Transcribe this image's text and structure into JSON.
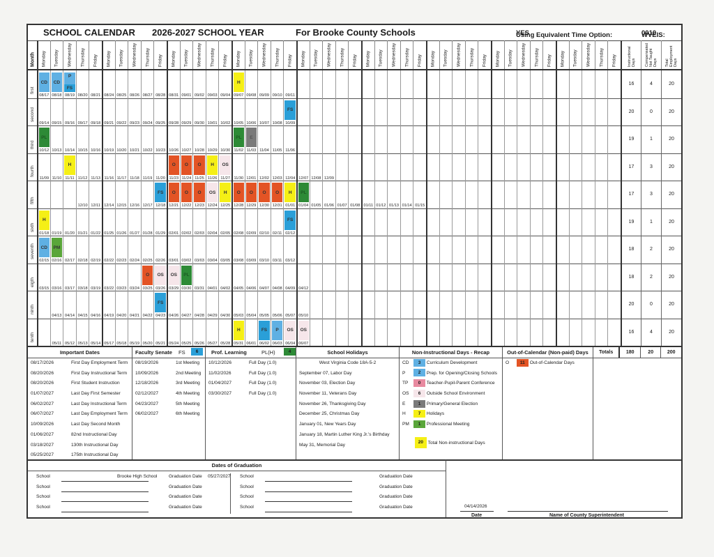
{
  "header": {
    "title": "SCHOOL CALENDAR",
    "year": "2026-2027 SCHOOL YEAR",
    "county": "For Brooke County Schools",
    "equiv_label": "Using Equivalent Time Option:",
    "equiv_value": "YES",
    "wveis_label": "WVEIS:",
    "wveis_value": "0010"
  },
  "columns": {
    "month": "Month",
    "days": [
      "Monday",
      "Tuesday",
      "Wednesday",
      "Thursday",
      "Friday"
    ],
    "weeks": 9,
    "summary": [
      "Instructional Days",
      "Compensated Not Taught Days",
      "Total Employment Days"
    ]
  },
  "months": [
    {
      "name": "first",
      "instructional": "16",
      "compensated": "4",
      "total": "20",
      "days": [
        {
          "date": "08/17",
          "code": "CD"
        },
        {
          "date": "08/18",
          "code": "CD"
        },
        {
          "date": "08/19",
          "code": "P",
          "code2": "FS"
        },
        {
          "date": "08/20"
        },
        {
          "date": "08/21"
        },
        {
          "date": "08/24"
        },
        {
          "date": "08/25"
        },
        {
          "date": "08/26"
        },
        {
          "date": "08/27"
        },
        {
          "date": "08/28"
        },
        {
          "date": "08/31"
        },
        {
          "date": "09/01"
        },
        {
          "date": "09/02"
        },
        {
          "date": "09/03"
        },
        {
          "date": "09/04"
        },
        {
          "date": "09/07",
          "code": "H"
        },
        {
          "date": "09/08"
        },
        {
          "date": "09/09"
        },
        {
          "date": "09/10"
        },
        {
          "date": "09/11"
        }
      ]
    },
    {
      "name": "second",
      "instructional": "20",
      "compensated": "0",
      "total": "20",
      "days": [
        {
          "date": "09/14"
        },
        {
          "date": "09/15"
        },
        {
          "date": "09/16"
        },
        {
          "date": "09/17"
        },
        {
          "date": "09/18"
        },
        {
          "date": "09/21"
        },
        {
          "date": "09/22"
        },
        {
          "date": "09/23"
        },
        {
          "date": "09/24"
        },
        {
          "date": "09/25"
        },
        {
          "date": "09/28"
        },
        {
          "date": "09/29"
        },
        {
          "date": "09/30"
        },
        {
          "date": "10/01"
        },
        {
          "date": "10/02"
        },
        {
          "date": "10/05"
        },
        {
          "date": "10/06"
        },
        {
          "date": "10/07"
        },
        {
          "date": "10/08"
        },
        {
          "date": "10/09",
          "code": "FS"
        }
      ]
    },
    {
      "name": "third",
      "instructional": "19",
      "compensated": "1",
      "total": "20",
      "days": [
        {
          "date": "10/12",
          "code": "PL"
        },
        {
          "date": "10/13"
        },
        {
          "date": "10/14"
        },
        {
          "date": "10/15"
        },
        {
          "date": "10/16"
        },
        {
          "date": "10/19"
        },
        {
          "date": "10/20"
        },
        {
          "date": "10/21"
        },
        {
          "date": "10/22"
        },
        {
          "date": "10/23"
        },
        {
          "date": "10/26"
        },
        {
          "date": "10/27"
        },
        {
          "date": "10/28"
        },
        {
          "date": "10/29"
        },
        {
          "date": "10/30"
        },
        {
          "date": "11/02",
          "code": "PL"
        },
        {
          "date": "11/03",
          "code": "E"
        },
        {
          "date": "11/04"
        },
        {
          "date": "11/05"
        },
        {
          "date": "11/06"
        }
      ]
    },
    {
      "name": "fourth",
      "instructional": "17",
      "compensated": "3",
      "total": "20",
      "days": [
        {
          "date": "11/09"
        },
        {
          "date": "11/10"
        },
        {
          "date": "11/11",
          "code": "H"
        },
        {
          "date": "11/12"
        },
        {
          "date": "11/13"
        },
        {
          "date": "11/16"
        },
        {
          "date": "11/17"
        },
        {
          "date": "11/18"
        },
        {
          "date": "11/19"
        },
        {
          "date": "11/20"
        },
        {
          "date": "11/23",
          "code": "O"
        },
        {
          "date": "11/24",
          "code": "O"
        },
        {
          "date": "11/25",
          "code": "O"
        },
        {
          "date": "11/26",
          "code": "H"
        },
        {
          "date": "11/27",
          "code": "OS"
        },
        {
          "date": "11/30"
        },
        {
          "date": "12/01"
        },
        {
          "date": "12/02"
        },
        {
          "date": "12/03"
        },
        {
          "date": "12/04"
        },
        {
          "date": "12/07"
        },
        {
          "date": "12/08"
        },
        {
          "date": "12/09"
        }
      ]
    },
    {
      "name": "fifth",
      "instructional": "17",
      "compensated": "3",
      "total": "20",
      "days": [
        {},
        {},
        {},
        {
          "date": "12/10"
        },
        {
          "date": "12/11"
        },
        {
          "date": "12/14"
        },
        {
          "date": "12/15"
        },
        {
          "date": "12/16"
        },
        {
          "date": "12/17"
        },
        {
          "date": "12/18",
          "code": "FS"
        },
        {
          "date": "12/21",
          "code": "O"
        },
        {
          "date": "12/22",
          "code": "O"
        },
        {
          "date": "12/23",
          "code": "O"
        },
        {
          "date": "12/24",
          "code": "OS"
        },
        {
          "date": "12/25",
          "code": "H"
        },
        {
          "date": "12/28",
          "code": "O"
        },
        {
          "date": "12/29",
          "code": "O"
        },
        {
          "date": "12/30",
          "code": "O"
        },
        {
          "date": "12/31",
          "code": "O"
        },
        {
          "date": "01/01",
          "code": "H"
        },
        {
          "date": "01/04",
          "code": "PL"
        },
        {
          "date": "01/05"
        },
        {
          "date": "01/06"
        },
        {
          "date": "01/07"
        },
        {
          "date": "01/08"
        },
        {
          "date": "01/11"
        },
        {
          "date": "01/12"
        },
        {
          "date": "01/13"
        },
        {
          "date": "01/14"
        },
        {
          "date": "01/15"
        }
      ]
    },
    {
      "name": "sixth",
      "instructional": "19",
      "compensated": "1",
      "total": "20",
      "days": [
        {
          "date": "01/18",
          "code": "H"
        },
        {
          "date": "01/19"
        },
        {
          "date": "01/20"
        },
        {
          "date": "01/21"
        },
        {
          "date": "01/22"
        },
        {
          "date": "01/25"
        },
        {
          "date": "01/26"
        },
        {
          "date": "01/27"
        },
        {
          "date": "01/28"
        },
        {
          "date": "01/29"
        },
        {
          "date": "02/01"
        },
        {
          "date": "02/02"
        },
        {
          "date": "02/03"
        },
        {
          "date": "02/04"
        },
        {
          "date": "02/05"
        },
        {
          "date": "02/08"
        },
        {
          "date": "02/09"
        },
        {
          "date": "02/10"
        },
        {
          "date": "02/11"
        },
        {
          "date": "02/12",
          "code": "FS"
        }
      ]
    },
    {
      "name": "seventh",
      "instructional": "18",
      "compensated": "2",
      "total": "20",
      "days": [
        {
          "date": "02/15",
          "code": "CD"
        },
        {
          "date": "02/16",
          "code": "PM"
        },
        {
          "date": "02/17"
        },
        {
          "date": "02/18"
        },
        {
          "date": "02/19"
        },
        {
          "date": "02/22"
        },
        {
          "date": "02/23"
        },
        {
          "date": "02/24"
        },
        {
          "date": "02/25"
        },
        {
          "date": "02/26"
        },
        {
          "date": "03/01"
        },
        {
          "date": "03/02"
        },
        {
          "date": "03/03"
        },
        {
          "date": "03/04"
        },
        {
          "date": "03/05"
        },
        {
          "date": "03/08"
        },
        {
          "date": "03/09"
        },
        {
          "date": "03/10"
        },
        {
          "date": "03/11"
        },
        {
          "date": "03/12"
        }
      ]
    },
    {
      "name": "eigth",
      "instructional": "18",
      "compensated": "2",
      "total": "20",
      "days": [
        {
          "date": "03/15"
        },
        {
          "date": "03/16"
        },
        {
          "date": "03/17"
        },
        {
          "date": "03/18"
        },
        {
          "date": "03/19"
        },
        {
          "date": "03/22"
        },
        {
          "date": "03/23"
        },
        {
          "date": "03/24"
        },
        {
          "date": "03/25",
          "code": "O"
        },
        {
          "date": "03/26",
          "code": "OS"
        },
        {
          "date": "03/29",
          "code": "OS"
        },
        {
          "date": "03/30",
          "code": "PL"
        },
        {
          "date": "03/31"
        },
        {
          "date": "04/01"
        },
        {
          "date": "04/02"
        },
        {
          "date": "04/05"
        },
        {
          "date": "04/06"
        },
        {
          "date": "04/07"
        },
        {
          "date": "04/08"
        },
        {
          "date": "04/09"
        },
        {
          "date": "04/12"
        }
      ]
    },
    {
      "name": "ninth",
      "instructional": "20",
      "compensated": "0",
      "total": "20",
      "days": [
        {},
        {
          "date": "04/13"
        },
        {
          "date": "04/14"
        },
        {
          "date": "04/15"
        },
        {
          "date": "04/16"
        },
        {
          "date": "04/19"
        },
        {
          "date": "04/20"
        },
        {
          "date": "04/21"
        },
        {
          "date": "04/22"
        },
        {
          "date": "04/23",
          "code": "FS"
        },
        {
          "date": "04/26"
        },
        {
          "date": "04/27"
        },
        {
          "date": "04/28"
        },
        {
          "date": "04/29"
        },
        {
          "date": "04/30"
        },
        {
          "date": "05/03"
        },
        {
          "date": "05/04"
        },
        {
          "date": "05/05"
        },
        {
          "date": "05/06"
        },
        {
          "date": "05/07"
        },
        {
          "date": "05/10"
        }
      ]
    },
    {
      "name": "tenth",
      "instructional": "16",
      "compensated": "4",
      "total": "20",
      "days": [
        {},
        {
          "date": "05/11"
        },
        {
          "date": "05/12"
        },
        {
          "date": "05/13"
        },
        {
          "date": "05/14"
        },
        {
          "date": "05/17"
        },
        {
          "date": "05/18"
        },
        {
          "date": "05/19"
        },
        {
          "date": "05/20"
        },
        {
          "date": "05/21"
        },
        {
          "date": "05/24"
        },
        {
          "date": "05/25"
        },
        {
          "date": "05/26"
        },
        {
          "date": "05/27"
        },
        {
          "date": "05/28"
        },
        {
          "date": "05/31",
          "code": "H"
        },
        {
          "date": "06/01"
        },
        {
          "date": "06/02",
          "code": "FS"
        },
        {
          "date": "06/03",
          "code": "P"
        },
        {
          "date": "06/04",
          "code": "OS"
        },
        {
          "date": "06/07",
          "code": "OS"
        }
      ]
    }
  ],
  "important_dates": {
    "title": "Important Dates",
    "items": [
      {
        "date": "08/17/2026",
        "label": "First Day Employment Term"
      },
      {
        "date": "08/20/2026",
        "label": "First Day Instructional Term"
      },
      {
        "date": "08/20/2026",
        "label": "First Student Instruction"
      },
      {
        "date": "01/07/2027",
        "label": "Last Day First Semester"
      },
      {
        "date": "06/02/2027",
        "label": "Last Day Instructional Term"
      },
      {
        "date": "06/07/2027",
        "label": "Last Day Employment Term"
      },
      {
        "date": "10/09/2026",
        "label": "Last Day Second Month"
      },
      {
        "date": "01/06/2027",
        "label": "82nd Instructional Day"
      },
      {
        "date": "03/18/2027",
        "label": "130th Instructional Day"
      },
      {
        "date": "05/25/2027",
        "label": "175th Instructional Day"
      }
    ]
  },
  "faculty_senate": {
    "title": "Faculty Senate",
    "abbr": "FS",
    "count": "6",
    "items": [
      {
        "date": "08/19/2026",
        "label": "1st Meeting"
      },
      {
        "date": "10/09/2026",
        "label": "2nd Meeting"
      },
      {
        "date": "12/18/2026",
        "label": "3rd Meeting"
      },
      {
        "date": "02/12/2027",
        "label": "4th Meeting"
      },
      {
        "date": "04/23/2027",
        "label": "5th Meeting"
      },
      {
        "date": "06/02/2027",
        "label": "6th Meeting"
      }
    ]
  },
  "prof_learning": {
    "title": "Prof. Learning",
    "abbr": "PL(H)",
    "count": "4",
    "items": [
      {
        "date": "10/12/2026",
        "label": "Full Day (1.0)"
      },
      {
        "date": "11/02/2026",
        "label": "Full Day (1.0)"
      },
      {
        "date": "01/04/2027",
        "label": "Full Day (1.0)"
      },
      {
        "date": "03/30/2027",
        "label": "Full Day (1.0)"
      }
    ]
  },
  "holidays": {
    "title": "School Holidays",
    "code": "West Virginia Code 18A-5-2",
    "items": [
      "September 07, Labor Day",
      "November 03, Election Day",
      "November 11, Veterans Day",
      "November 26, Thanksgiving Day",
      "December 25, Christmas Day",
      "January 01, New Years Day",
      "January 18, Martin Luther King Jr.'s Birthday",
      "May 31, Memorial Day"
    ]
  },
  "recap": {
    "title": "Non-Instructional Days - Recap",
    "items": [
      {
        "abbr": "CD",
        "count": "3",
        "label": "Curriculum Development",
        "color": "#5fb0e3"
      },
      {
        "abbr": "P",
        "count": "2",
        "label": "Prep. for Opening/Closing Schools",
        "color": "#5fb0e3"
      },
      {
        "abbr": "TP",
        "count": "0",
        "label": "Teacher-Pupil-Parent Conference",
        "color": "#e88aa0"
      },
      {
        "abbr": "OS",
        "count": "6",
        "label": "Outside School Environment",
        "color": "#f6e6ea"
      },
      {
        "abbr": "E",
        "count": "1",
        "label": "Primary/General Election",
        "color": "#7a7a7a"
      },
      {
        "abbr": "H",
        "count": "7",
        "label": "Holidays",
        "color": "#f5ef16"
      },
      {
        "abbr": "PM",
        "count": "1",
        "label": "Professional Meeting",
        "color": "#5aa63a"
      }
    ],
    "total_count": "20",
    "total_label": "Total Non-instructional Days"
  },
  "out_of_calendar": {
    "title": "Out-of-Calendar (Non-paid) Days",
    "abbr": "O",
    "count": "11",
    "label": "Out-of-Calendar Days"
  },
  "totals": {
    "label": "Totals",
    "instructional": "180",
    "compensated": "20",
    "total": "200"
  },
  "graduation": {
    "title": "Dates of Graduation",
    "school_label": "School",
    "date_label": "Graduation Date",
    "left": [
      {
        "school": "Brooke High School",
        "date": "05/27/2027"
      },
      {
        "school": "",
        "date": ""
      },
      {
        "school": "",
        "date": ""
      },
      {
        "school": "",
        "date": ""
      }
    ],
    "right": [
      {
        "school": "",
        "date": ""
      },
      {
        "school": "",
        "date": ""
      },
      {
        "school": "",
        "date": ""
      },
      {
        "school": "",
        "date": ""
      }
    ]
  },
  "signature": {
    "date_value": "04/14/2026",
    "date_label": "Date",
    "name_label": "Name of County Superintendent"
  },
  "colors": {
    "CD": "#5fb0e3",
    "P": "#5fb0e3",
    "FS": "#2a9fd8",
    "H": "#f5ef16",
    "O": "#e35425",
    "OS": "#f6e6ea",
    "PL": "#2d8a36",
    "PM": "#5aa63a",
    "E": "#7a7a7a"
  }
}
